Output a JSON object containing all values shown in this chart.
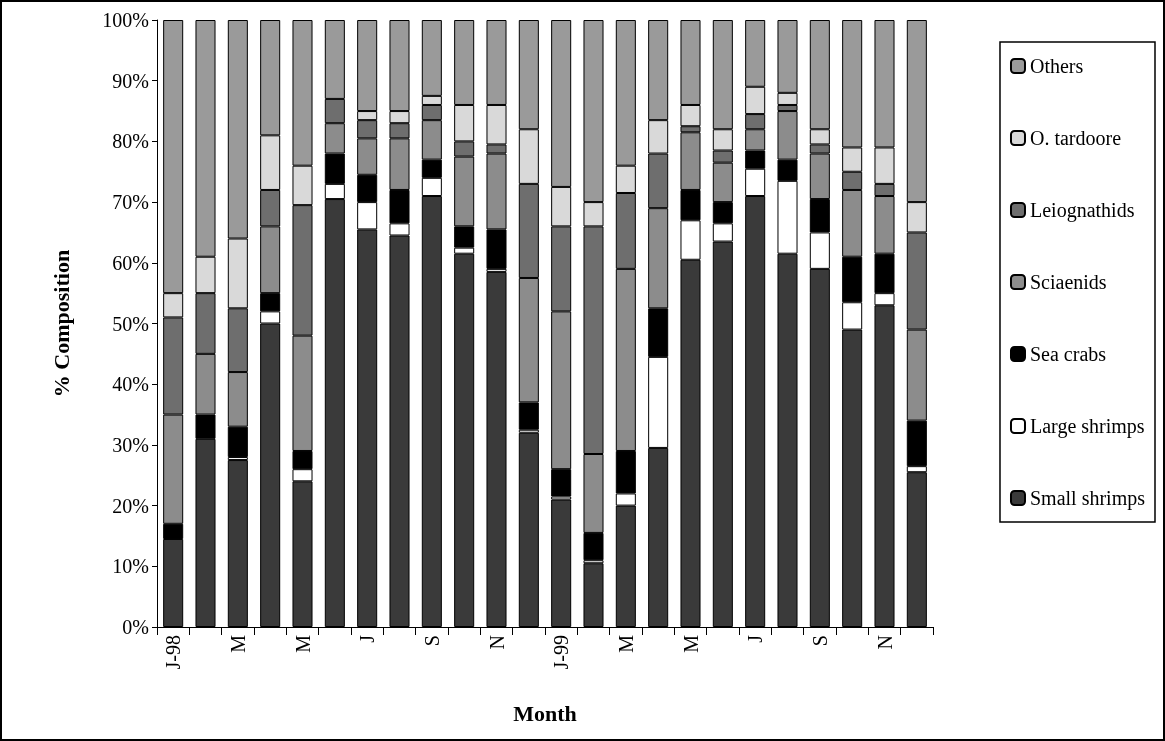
{
  "chart_data": {
    "type": "bar",
    "stacked": true,
    "xlabel": "Month",
    "ylabel": "% Composition",
    "categories": [
      "J-98",
      null,
      "M",
      null,
      "M",
      null,
      "J",
      null,
      "S",
      null,
      "N",
      null,
      "J-99",
      null,
      "M",
      null,
      "M",
      null,
      "J",
      null,
      "S",
      null,
      "N",
      null
    ],
    "ylim": [
      0,
      100
    ],
    "yticks": [
      {
        "value": 0,
        "label": "0%"
      },
      {
        "value": 10,
        "label": "10%"
      },
      {
        "value": 20,
        "label": "20%"
      },
      {
        "value": 30,
        "label": "30%"
      },
      {
        "value": 40,
        "label": "40%"
      },
      {
        "value": 50,
        "label": "50%"
      },
      {
        "value": 60,
        "label": "60%"
      },
      {
        "value": 70,
        "label": "70%"
      },
      {
        "value": 80,
        "label": "80%"
      },
      {
        "value": 90,
        "label": "90%"
      },
      {
        "value": 100,
        "label": "100%"
      }
    ],
    "grid": false,
    "legend": "right",
    "series": [
      {
        "name": "Small shrimps",
        "color": "#3a3a3a",
        "values": [
          14.5,
          31,
          27.5,
          50,
          24,
          70.5,
          65.5,
          64.5,
          71,
          61.5,
          58.5,
          32,
          21,
          10.5,
          20,
          29.5,
          60.5,
          63.5,
          71,
          61.5,
          59,
          49,
          53,
          25.5
        ]
      },
      {
        "name": "Large shrimps",
        "color": "#ffffff",
        "values": [
          0,
          0,
          0.5,
          2,
          2,
          2.5,
          4.5,
          2,
          3,
          1,
          0.5,
          0.5,
          0.5,
          0.5,
          2,
          15,
          6.5,
          3,
          4.5,
          12,
          6,
          4.5,
          2,
          1
        ]
      },
      {
        "name": "Sea crabs",
        "color": "#000000",
        "values": [
          2.5,
          4,
          5,
          3,
          3,
          5,
          4.5,
          5.5,
          3,
          3.5,
          6.5,
          4.5,
          4.5,
          4.5,
          7,
          8,
          5,
          3.5,
          3,
          3.5,
          5.5,
          7.5,
          6.5,
          7.5
        ]
      },
      {
        "name": "Sciaenids",
        "color": "#8c8c8c",
        "values": [
          18,
          10,
          9,
          11,
          19,
          5,
          6,
          8.5,
          6.5,
          11.5,
          12.5,
          20.5,
          26,
          13,
          30,
          16.5,
          9.5,
          6.5,
          3.5,
          8,
          7.5,
          11,
          9.5,
          15
        ]
      },
      {
        "name": "Leiognathids",
        "color": "#6e6e6e",
        "values": [
          16,
          10,
          10.5,
          6,
          21.5,
          4,
          3,
          2.5,
          2.5,
          2.5,
          1.5,
          15.5,
          14,
          37.5,
          12.5,
          9,
          1,
          2,
          2.5,
          1,
          1.5,
          3,
          2,
          16
        ]
      },
      {
        "name": "O. tardoore",
        "color": "#d9d9d9",
        "values": [
          4,
          6,
          11.5,
          9,
          6.5,
          0,
          1.5,
          2,
          1.5,
          6,
          6.5,
          9,
          6.5,
          4,
          4.5,
          5.5,
          3.5,
          3.5,
          4.5,
          2,
          2.5,
          4,
          6,
          5
        ]
      },
      {
        "name": "Others",
        "color": "#9a9a9a",
        "values": [
          45,
          39,
          36,
          19,
          24,
          13,
          15,
          15,
          12.5,
          14,
          14,
          18,
          27.5,
          30,
          24,
          16.5,
          14,
          18,
          11,
          12,
          18,
          21,
          21,
          30
        ]
      }
    ]
  }
}
